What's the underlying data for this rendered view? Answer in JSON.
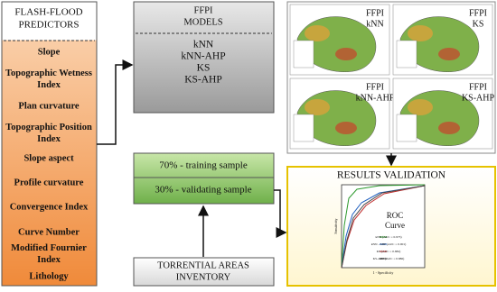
{
  "predictors": {
    "title": [
      "FLASH-FLOOD",
      "PREDICTORS"
    ],
    "items": [
      [
        "Slope"
      ],
      [
        "Topographic Wetness",
        "Index"
      ],
      [
        "Plan curvature"
      ],
      [
        "Topographic Position",
        "Index"
      ],
      [
        "Slope aspect"
      ],
      [
        "Profile curvature"
      ],
      [
        "Convergence Index"
      ],
      [
        "Curve Number"
      ],
      [
        "Modified Fournier",
        "Index"
      ],
      [
        "Lithology"
      ]
    ]
  },
  "models": {
    "title": [
      "FFPI",
      "MODELS"
    ],
    "items": [
      "kNN",
      "kNN-AHP",
      "KS",
      "KS-AHP"
    ]
  },
  "samples": [
    "70% - training sample",
    "30% - validating sample"
  ],
  "inventory": [
    "TORRENTIAL AREAS",
    "INVENTORY"
  ],
  "maps": [
    [
      "FFPI",
      "kNN"
    ],
    [
      "FFPI",
      "KS"
    ],
    [
      "FFPI",
      "kNN-AHP"
    ],
    [
      "FFPI",
      "KS-AHP"
    ]
  ],
  "validation": {
    "title": "RESULTS VALIDATION",
    "chart_title": [
      "ROC",
      "Curve"
    ],
    "y_label": "Sensitivity",
    "x_label": "1 - Specificity",
    "legend": [
      "kNN (AUC = 0.973)",
      "kNN - AHP (AUC = 0.901)",
      "KS (AUC = 0.882)",
      "KS-AHP (AUC = 0.886)"
    ]
  }
}
